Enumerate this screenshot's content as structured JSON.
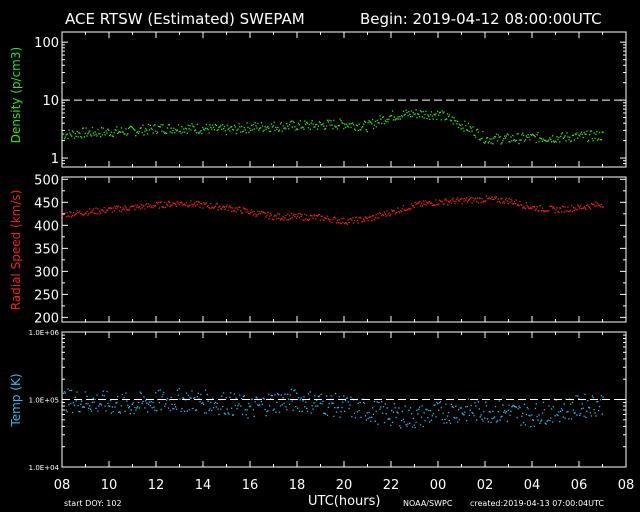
{
  "header": {
    "title": "ACE RTSW (Estimated) SWEPAM",
    "begin": "Begin: 2019-04-12 08:00:00UTC"
  },
  "footer": {
    "start_doy": "start DOY: 102",
    "xlabel": "UTC(hours)",
    "credit": "NOAA/SWPC",
    "created": "created:2019-04-13 07:00:04UTC"
  },
  "x_ticks": [
    "08",
    "10",
    "12",
    "14",
    "16",
    "18",
    "20",
    "22",
    "00",
    "02",
    "04",
    "06",
    "08"
  ],
  "colors": {
    "density": "#33dd33",
    "speed": "#ee2222",
    "temp": "#33bbee",
    "frame": "#ffffff",
    "text": "#ffffff"
  },
  "chart_data": [
    {
      "type": "scatter",
      "name": "density",
      "ylabel": "Density (p/cm3)",
      "yscale": "log",
      "ylim": [
        0.7,
        150
      ],
      "yticks": [
        {
          "v": 1,
          "label": "1"
        },
        {
          "v": 10,
          "label": "10"
        },
        {
          "v": 100,
          "label": "100"
        }
      ],
      "reference_line": 10,
      "x_hours_since_begin": [
        0,
        1,
        2,
        3,
        4,
        5,
        6,
        7,
        8,
        9,
        10,
        11,
        12,
        13,
        14,
        15,
        16,
        17,
        18,
        19,
        20,
        21,
        22,
        23
      ],
      "values": [
        2.6,
        2.8,
        2.9,
        3.0,
        3.3,
        3.4,
        3.3,
        3.1,
        3.5,
        3.6,
        3.7,
        3.8,
        4.0,
        3.6,
        5.5,
        6.0,
        5.8,
        3.8,
        2.2,
        2.2,
        2.3,
        2.3,
        2.4,
        2.5
      ]
    },
    {
      "type": "scatter",
      "name": "speed",
      "ylabel": "Radial Speed (km/s)",
      "yscale": "linear",
      "ylim": [
        190,
        505
      ],
      "yticks": [
        {
          "v": 200,
          "label": "200"
        },
        {
          "v": 250,
          "label": "250"
        },
        {
          "v": 300,
          "label": "300"
        },
        {
          "v": 350,
          "label": "350"
        },
        {
          "v": 400,
          "label": "400"
        },
        {
          "v": 450,
          "label": "450"
        },
        {
          "v": 500,
          "label": "500"
        }
      ],
      "x_hours_since_begin": [
        0,
        1,
        2,
        3,
        4,
        5,
        6,
        7,
        8,
        9,
        10,
        11,
        12,
        13,
        14,
        15,
        16,
        17,
        18,
        19,
        20,
        21,
        22,
        23
      ],
      "values": [
        425,
        430,
        435,
        440,
        445,
        450,
        445,
        440,
        430,
        420,
        420,
        418,
        410,
        415,
        430,
        445,
        452,
        455,
        458,
        455,
        440,
        435,
        440,
        448
      ]
    },
    {
      "type": "scatter",
      "name": "temp",
      "ylabel": "Temp (K)",
      "yscale": "log",
      "ylim": [
        10000,
        1000000
      ],
      "yticks": [
        {
          "v": 10000,
          "label": "1.0E+04"
        },
        {
          "v": 100000,
          "label": "1.0E+05"
        },
        {
          "v": 1000000,
          "label": "1.0E+06"
        }
      ],
      "reference_line": 100000,
      "x_hours_since_begin": [
        0,
        1,
        2,
        3,
        4,
        5,
        6,
        7,
        8,
        9,
        10,
        11,
        12,
        13,
        14,
        15,
        16,
        17,
        18,
        19,
        20,
        21,
        22,
        23
      ],
      "values": [
        100000,
        95000,
        90000,
        85000,
        95000,
        100000,
        95000,
        90000,
        75000,
        95000,
        100000,
        90000,
        80000,
        70000,
        60000,
        55000,
        65000,
        70000,
        70000,
        65000,
        60000,
        70000,
        80000,
        90000
      ]
    }
  ]
}
